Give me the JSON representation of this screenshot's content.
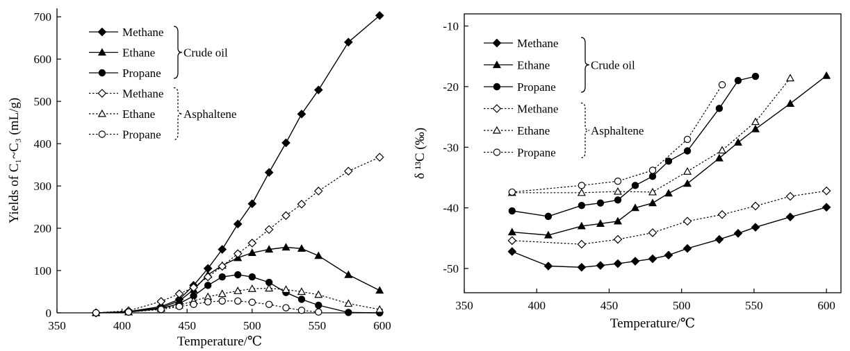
{
  "chart_data": [
    {
      "type": "line",
      "xlabel": "Temperature/℃",
      "ylabel": "Yields of C₁~C₃ (mL/g)",
      "xlim": [
        350,
        600
      ],
      "ylim": [
        0,
        720
      ],
      "x_ticks": [
        "350",
        "400",
        "450",
        "500",
        "550",
        "600"
      ],
      "y_ticks": [
        "0",
        "100",
        "200",
        "300",
        "400",
        "500",
        "600",
        "700"
      ],
      "legend_groups": [
        "Crude oil",
        "Asphaltene"
      ],
      "series": [
        {
          "name": "Methane",
          "group": "Crude oil",
          "line": "solid",
          "marker": "diamond",
          "filled": true,
          "x": [
            380,
            405,
            430,
            444,
            455,
            466,
            477,
            489,
            500,
            513,
            526,
            538,
            551,
            574,
            598
          ],
          "y": [
            0,
            3,
            15,
            32,
            65,
            105,
            150,
            210,
            258,
            332,
            402,
            470,
            527,
            640,
            703
          ]
        },
        {
          "name": "Ethane",
          "group": "Crude oil",
          "line": "solid",
          "marker": "triangle",
          "filled": true,
          "x": [
            380,
            405,
            430,
            444,
            455,
            466,
            477,
            489,
            500,
            513,
            526,
            538,
            551,
            574,
            598
          ],
          "y": [
            0,
            2,
            12,
            28,
            55,
            90,
            112,
            130,
            142,
            150,
            155,
            152,
            135,
            90,
            53
          ]
        },
        {
          "name": "Propane",
          "group": "Crude oil",
          "line": "solid",
          "marker": "circle",
          "filled": true,
          "x": [
            380,
            405,
            430,
            444,
            455,
            466,
            477,
            489,
            500,
            513,
            526,
            538,
            551,
            574,
            598
          ],
          "y": [
            0,
            2,
            10,
            22,
            40,
            65,
            85,
            90,
            85,
            72,
            48,
            32,
            18,
            1,
            0
          ]
        },
        {
          "name": "Methane",
          "group": "Asphaltene",
          "line": "dotted",
          "marker": "diamond",
          "filled": false,
          "x": [
            380,
            405,
            430,
            444,
            455,
            466,
            477,
            489,
            500,
            513,
            526,
            538,
            551,
            574,
            598
          ],
          "y": [
            0,
            5,
            27,
            45,
            60,
            85,
            110,
            140,
            165,
            197,
            230,
            257,
            288,
            335,
            368
          ]
        },
        {
          "name": "Ethane",
          "group": "Asphaltene",
          "line": "dotted",
          "marker": "triangle",
          "filled": false,
          "x": [
            380,
            405,
            430,
            444,
            455,
            466,
            477,
            489,
            500,
            513,
            526,
            538,
            551,
            574,
            598
          ],
          "y": [
            0,
            2,
            10,
            18,
            28,
            38,
            45,
            52,
            57,
            58,
            55,
            50,
            43,
            22,
            8
          ]
        },
        {
          "name": "Propane",
          "group": "Asphaltene",
          "line": "dotted",
          "marker": "circle",
          "filled": false,
          "x": [
            380,
            405,
            430,
            444,
            455,
            466,
            477,
            489,
            500,
            513,
            526,
            538,
            551
          ],
          "y": [
            0,
            2,
            8,
            15,
            20,
            26,
            28,
            28,
            25,
            20,
            12,
            6,
            2
          ]
        }
      ]
    },
    {
      "type": "line",
      "xlabel": "Temperature/℃",
      "ylabel": "δ ¹³C (‰)",
      "xlim": [
        350,
        610
      ],
      "ylim": [
        -54,
        -8
      ],
      "x_ticks": [
        "350",
        "400",
        "450",
        "500",
        "550",
        "600"
      ],
      "y_ticks": [
        "-10",
        "-20",
        "-30",
        "-40",
        "-50"
      ],
      "legend_groups": [
        "Crude oil",
        "Asphaltene"
      ],
      "series": [
        {
          "name": "Methane",
          "group": "Crude oil",
          "line": "solid",
          "marker": "diamond",
          "filled": true,
          "x": [
            383,
            408,
            431,
            444,
            456,
            468,
            480,
            491,
            504,
            526,
            539,
            551,
            575,
            600
          ],
          "y": [
            -47.2,
            -49.6,
            -49.8,
            -49.5,
            -49.2,
            -48.8,
            -48.4,
            -47.8,
            -46.7,
            -45.2,
            -44.2,
            -43.2,
            -41.5,
            -39.9
          ]
        },
        {
          "name": "Ethane",
          "group": "Crude oil",
          "line": "solid",
          "marker": "triangle",
          "filled": true,
          "x": [
            383,
            408,
            431,
            444,
            456,
            468,
            480,
            491,
            504,
            526,
            539,
            551,
            575,
            600
          ],
          "y": [
            -44.0,
            -44.5,
            -43.0,
            -42.6,
            -42.2,
            -40.0,
            -39.2,
            -37.6,
            -36.0,
            -31.8,
            -29.2,
            -27.0,
            -22.8,
            -18.2
          ]
        },
        {
          "name": "Propane",
          "group": "Crude oil",
          "line": "solid",
          "marker": "circle",
          "filled": true,
          "x": [
            383,
            408,
            431,
            444,
            456,
            468,
            480,
            491,
            504,
            526,
            539,
            551
          ],
          "y": [
            -40.5,
            -41.4,
            -39.6,
            -39.2,
            -38.7,
            -36.3,
            -34.8,
            -32.3,
            -30.6,
            -23.6,
            -19.0,
            -18.3
          ]
        },
        {
          "name": "Methane",
          "group": "Asphaltene",
          "line": "dotted",
          "marker": "diamond",
          "filled": false,
          "x": [
            383,
            431,
            456,
            480,
            504,
            528,
            551,
            575,
            600
          ],
          "y": [
            -45.4,
            -46.0,
            -45.2,
            -44.1,
            -42.2,
            -41.1,
            -39.7,
            -38.1,
            -37.2
          ]
        },
        {
          "name": "Ethane",
          "group": "Asphaltene",
          "line": "dotted",
          "marker": "triangle",
          "filled": false,
          "x": [
            383,
            431,
            456,
            480,
            504,
            528,
            551,
            575
          ],
          "y": [
            -37.5,
            -37.5,
            -37.3,
            -37.4,
            -34.0,
            -30.5,
            -25.8,
            -18.6
          ]
        },
        {
          "name": "Propane",
          "group": "Asphaltene",
          "line": "dotted",
          "marker": "circle",
          "filled": false,
          "x": [
            383,
            431,
            456,
            480,
            504,
            528
          ],
          "y": [
            -37.4,
            -36.3,
            -35.6,
            -33.8,
            -28.7,
            -19.7
          ]
        }
      ]
    }
  ]
}
